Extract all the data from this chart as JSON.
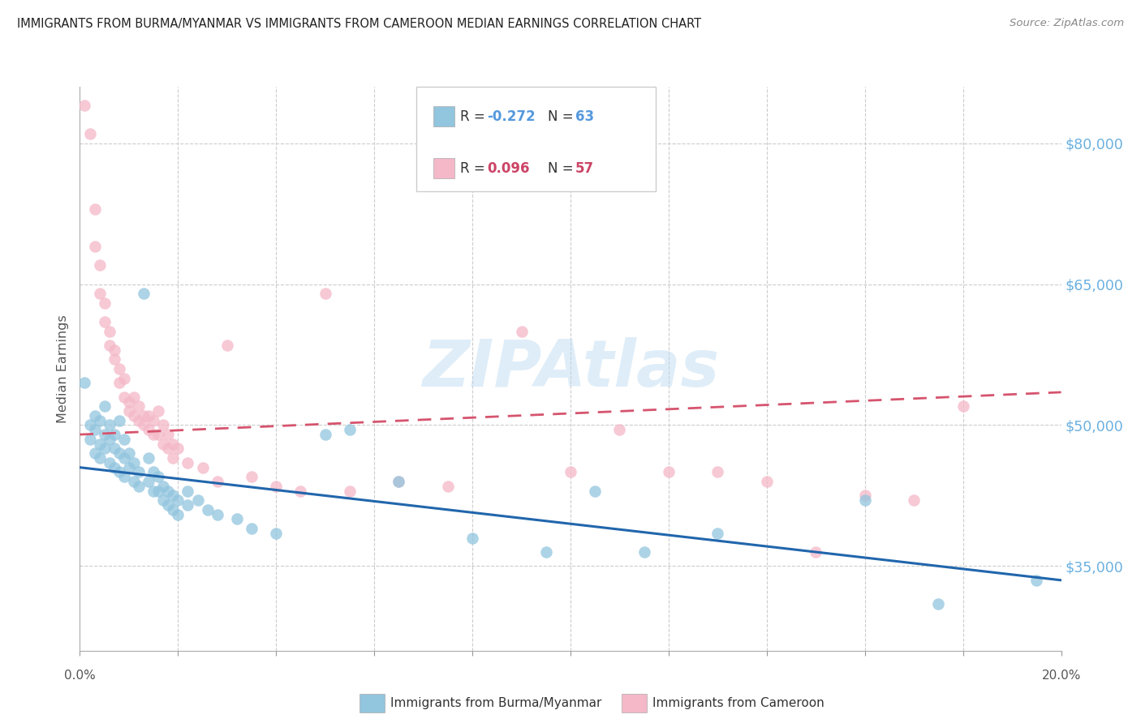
{
  "title": "IMMIGRANTS FROM BURMA/MYANMAR VS IMMIGRANTS FROM CAMEROON MEDIAN EARNINGS CORRELATION CHART",
  "source": "Source: ZipAtlas.com",
  "ylabel": "Median Earnings",
  "y_ticks": [
    35000,
    50000,
    65000,
    80000
  ],
  "y_tick_labels": [
    "$35,000",
    "$50,000",
    "$65,000",
    "$80,000"
  ],
  "x_min": 0.0,
  "x_max": 0.2,
  "y_min": 26000,
  "y_max": 86000,
  "blue_color": "#92c5de",
  "pink_color": "#f4b8c8",
  "blue_line_color": "#2166ac",
  "pink_line_color": "#d6546e",
  "watermark": "ZIPAtlas",
  "blue_scatter": [
    [
      0.001,
      54500
    ],
    [
      0.002,
      50000
    ],
    [
      0.002,
      48500
    ],
    [
      0.003,
      51000
    ],
    [
      0.003,
      49500
    ],
    [
      0.003,
      47000
    ],
    [
      0.004,
      50500
    ],
    [
      0.004,
      48000
    ],
    [
      0.004,
      46500
    ],
    [
      0.005,
      52000
    ],
    [
      0.005,
      49000
    ],
    [
      0.005,
      47500
    ],
    [
      0.006,
      50000
    ],
    [
      0.006,
      48500
    ],
    [
      0.006,
      46000
    ],
    [
      0.007,
      49000
    ],
    [
      0.007,
      47500
    ],
    [
      0.007,
      45500
    ],
    [
      0.008,
      50500
    ],
    [
      0.008,
      47000
    ],
    [
      0.008,
      45000
    ],
    [
      0.009,
      48500
    ],
    [
      0.009,
      46500
    ],
    [
      0.009,
      44500
    ],
    [
      0.01,
      47000
    ],
    [
      0.01,
      45500
    ],
    [
      0.011,
      46000
    ],
    [
      0.011,
      44000
    ],
    [
      0.012,
      45000
    ],
    [
      0.012,
      43500
    ],
    [
      0.013,
      64000
    ],
    [
      0.014,
      46500
    ],
    [
      0.014,
      44000
    ],
    [
      0.015,
      45000
    ],
    [
      0.015,
      43000
    ],
    [
      0.016,
      44500
    ],
    [
      0.016,
      43000
    ],
    [
      0.017,
      43500
    ],
    [
      0.017,
      42000
    ],
    [
      0.018,
      43000
    ],
    [
      0.018,
      41500
    ],
    [
      0.019,
      42500
    ],
    [
      0.019,
      41000
    ],
    [
      0.02,
      42000
    ],
    [
      0.02,
      40500
    ],
    [
      0.022,
      43000
    ],
    [
      0.022,
      41500
    ],
    [
      0.024,
      42000
    ],
    [
      0.026,
      41000
    ],
    [
      0.028,
      40500
    ],
    [
      0.032,
      40000
    ],
    [
      0.035,
      39000
    ],
    [
      0.04,
      38500
    ],
    [
      0.05,
      49000
    ],
    [
      0.055,
      49500
    ],
    [
      0.065,
      44000
    ],
    [
      0.08,
      38000
    ],
    [
      0.095,
      36500
    ],
    [
      0.105,
      43000
    ],
    [
      0.115,
      36500
    ],
    [
      0.13,
      38500
    ],
    [
      0.16,
      42000
    ],
    [
      0.175,
      31000
    ],
    [
      0.195,
      33500
    ]
  ],
  "pink_scatter": [
    [
      0.001,
      84000
    ],
    [
      0.002,
      81000
    ],
    [
      0.003,
      73000
    ],
    [
      0.003,
      69000
    ],
    [
      0.004,
      67000
    ],
    [
      0.004,
      64000
    ],
    [
      0.005,
      63000
    ],
    [
      0.005,
      61000
    ],
    [
      0.006,
      60000
    ],
    [
      0.006,
      58500
    ],
    [
      0.007,
      58000
    ],
    [
      0.007,
      57000
    ],
    [
      0.008,
      56000
    ],
    [
      0.008,
      54500
    ],
    [
      0.009,
      55000
    ],
    [
      0.009,
      53000
    ],
    [
      0.01,
      52500
    ],
    [
      0.01,
      51500
    ],
    [
      0.011,
      53000
    ],
    [
      0.011,
      51000
    ],
    [
      0.012,
      52000
    ],
    [
      0.012,
      50500
    ],
    [
      0.013,
      51000
    ],
    [
      0.013,
      50000
    ],
    [
      0.014,
      51000
    ],
    [
      0.014,
      49500
    ],
    [
      0.015,
      50500
    ],
    [
      0.015,
      49000
    ],
    [
      0.016,
      51500
    ],
    [
      0.016,
      49000
    ],
    [
      0.017,
      50000
    ],
    [
      0.017,
      48000
    ],
    [
      0.018,
      49000
    ],
    [
      0.018,
      47500
    ],
    [
      0.019,
      48000
    ],
    [
      0.019,
      46500
    ],
    [
      0.02,
      47500
    ],
    [
      0.022,
      46000
    ],
    [
      0.025,
      45500
    ],
    [
      0.028,
      44000
    ],
    [
      0.03,
      58500
    ],
    [
      0.035,
      44500
    ],
    [
      0.04,
      43500
    ],
    [
      0.045,
      43000
    ],
    [
      0.05,
      64000
    ],
    [
      0.055,
      43000
    ],
    [
      0.065,
      44000
    ],
    [
      0.075,
      43500
    ],
    [
      0.09,
      60000
    ],
    [
      0.1,
      45000
    ],
    [
      0.11,
      49500
    ],
    [
      0.12,
      45000
    ],
    [
      0.13,
      45000
    ],
    [
      0.14,
      44000
    ],
    [
      0.15,
      36500
    ],
    [
      0.16,
      42500
    ],
    [
      0.17,
      42000
    ],
    [
      0.18,
      52000
    ]
  ],
  "blue_line_x": [
    0.0,
    0.2
  ],
  "blue_line_y": [
    45500,
    33500
  ],
  "pink_line_x": [
    0.0,
    0.2
  ],
  "pink_line_y": [
    49000,
    53500
  ]
}
